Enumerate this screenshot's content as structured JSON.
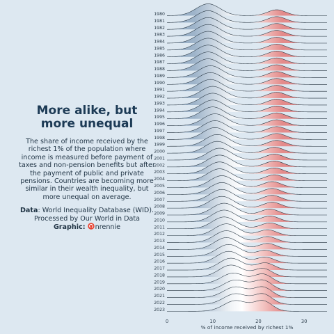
{
  "text": {
    "title": "More alike, but more unequal",
    "description": "The share of income received by the richest 1% of the population where income is measured before payment of taxes and non-pension benefits but after the payment of public and private pensions. Countries are becoming more similar in their wealth inequality, but more unequal on average.",
    "data_label": "Data",
    "data_text": ": World Inequality Database (WID). Processed by Our World in Data",
    "graphic_label": "Graphic",
    "graphic_sep": ":",
    "graphic_handle": "nrennie",
    "github_icon": "github-icon"
  },
  "colors": {
    "background": "#dde8f1",
    "low_fill": "#8fa9c2",
    "mid_fill": "#f1f4f7",
    "high_fill": "#e38b8b",
    "ridge_line": "#22303c",
    "title": "#1c3a55"
  },
  "chart_data": {
    "type": "ridgeline",
    "xlabel": "% of income received by richest 1%",
    "xlim": [
      0,
      35
    ],
    "x_ticks": [
      0,
      10,
      20,
      30
    ],
    "fill_gradient": "blue (low) to white (~15) to red (high)",
    "series": [
      {
        "year": "1980",
        "peaks": [
          {
            "mean": 9,
            "sd": 2.6,
            "weight": 1.0
          },
          {
            "mean": 24,
            "sd": 2.0,
            "weight": 0.5
          }
        ]
      },
      {
        "year": "1981",
        "peaks": [
          {
            "mean": 9,
            "sd": 2.6,
            "weight": 1.0
          },
          {
            "mean": 24,
            "sd": 2.0,
            "weight": 0.5
          }
        ]
      },
      {
        "year": "1982",
        "peaks": [
          {
            "mean": 9,
            "sd": 2.6,
            "weight": 1.0
          },
          {
            "mean": 24,
            "sd": 2.0,
            "weight": 0.5
          }
        ]
      },
      {
        "year": "1983",
        "peaks": [
          {
            "mean": 9,
            "sd": 2.6,
            "weight": 1.0
          },
          {
            "mean": 24,
            "sd": 2.0,
            "weight": 0.5
          }
        ]
      },
      {
        "year": "1984",
        "peaks": [
          {
            "mean": 9,
            "sd": 2.6,
            "weight": 1.0
          },
          {
            "mean": 24,
            "sd": 2.0,
            "weight": 0.5
          }
        ]
      },
      {
        "year": "1985",
        "peaks": [
          {
            "mean": 9,
            "sd": 2.6,
            "weight": 1.0
          },
          {
            "mean": 24,
            "sd": 2.0,
            "weight": 0.5
          }
        ]
      },
      {
        "year": "1986",
        "peaks": [
          {
            "mean": 9,
            "sd": 2.6,
            "weight": 1.0
          },
          {
            "mean": 24,
            "sd": 2.0,
            "weight": 0.5
          }
        ]
      },
      {
        "year": "1987",
        "peaks": [
          {
            "mean": 9,
            "sd": 2.6,
            "weight": 1.0
          },
          {
            "mean": 24,
            "sd": 2.0,
            "weight": 0.5
          }
        ]
      },
      {
        "year": "1988",
        "peaks": [
          {
            "mean": 9,
            "sd": 2.6,
            "weight": 1.0
          },
          {
            "mean": 24,
            "sd": 2.0,
            "weight": 0.5
          }
        ]
      },
      {
        "year": "1989",
        "peaks": [
          {
            "mean": 9.5,
            "sd": 2.6,
            "weight": 1.0
          },
          {
            "mean": 24,
            "sd": 2.0,
            "weight": 0.5
          }
        ]
      },
      {
        "year": "1990",
        "peaks": [
          {
            "mean": 9.5,
            "sd": 2.6,
            "weight": 1.0
          },
          {
            "mean": 24,
            "sd": 2.0,
            "weight": 0.5
          }
        ]
      },
      {
        "year": "1991",
        "peaks": [
          {
            "mean": 9.5,
            "sd": 2.6,
            "weight": 1.0
          },
          {
            "mean": 24,
            "sd": 2.0,
            "weight": 0.5
          }
        ]
      },
      {
        "year": "1992",
        "peaks": [
          {
            "mean": 10,
            "sd": 2.6,
            "weight": 1.0
          },
          {
            "mean": 24,
            "sd": 2.0,
            "weight": 0.5
          }
        ]
      },
      {
        "year": "1993",
        "peaks": [
          {
            "mean": 10,
            "sd": 2.6,
            "weight": 1.0
          },
          {
            "mean": 24,
            "sd": 2.0,
            "weight": 0.5
          }
        ]
      },
      {
        "year": "1994",
        "peaks": [
          {
            "mean": 10,
            "sd": 2.6,
            "weight": 1.0
          },
          {
            "mean": 24,
            "sd": 2.0,
            "weight": 0.5
          }
        ]
      },
      {
        "year": "1995",
        "peaks": [
          {
            "mean": 10,
            "sd": 2.6,
            "weight": 1.0
          },
          {
            "mean": 24,
            "sd": 2.0,
            "weight": 0.5
          }
        ]
      },
      {
        "year": "1996",
        "peaks": [
          {
            "mean": 10.5,
            "sd": 2.6,
            "weight": 1.0
          },
          {
            "mean": 24,
            "sd": 2.0,
            "weight": 0.5
          }
        ]
      },
      {
        "year": "1997",
        "peaks": [
          {
            "mean": 10.5,
            "sd": 2.6,
            "weight": 1.0
          },
          {
            "mean": 24,
            "sd": 2.0,
            "weight": 0.5
          }
        ]
      },
      {
        "year": "1998",
        "peaks": [
          {
            "mean": 10.5,
            "sd": 2.6,
            "weight": 1.0
          },
          {
            "mean": 24,
            "sd": 2.0,
            "weight": 0.5
          }
        ]
      },
      {
        "year": "1999",
        "peaks": [
          {
            "mean": 11,
            "sd": 2.6,
            "weight": 1.0
          },
          {
            "mean": 24,
            "sd": 2.0,
            "weight": 0.5
          }
        ]
      },
      {
        "year": "2000",
        "peaks": [
          {
            "mean": 11,
            "sd": 2.6,
            "weight": 1.0
          },
          {
            "mean": 23.5,
            "sd": 2.0,
            "weight": 0.5
          }
        ]
      },
      {
        "year": "2001",
        "peaks": [
          {
            "mean": 11.5,
            "sd": 2.6,
            "weight": 1.0
          },
          {
            "mean": 23.5,
            "sd": 2.0,
            "weight": 0.5
          }
        ]
      },
      {
        "year": "2002",
        "peaks": [
          {
            "mean": 11.5,
            "sd": 2.6,
            "weight": 1.0
          },
          {
            "mean": 23.5,
            "sd": 2.0,
            "weight": 0.5
          }
        ]
      },
      {
        "year": "2003",
        "peaks": [
          {
            "mean": 11.5,
            "sd": 2.6,
            "weight": 1.0
          },
          {
            "mean": 23.5,
            "sd": 2.0,
            "weight": 0.5
          }
        ]
      },
      {
        "year": "2004",
        "peaks": [
          {
            "mean": 11.5,
            "sd": 2.6,
            "weight": 1.0
          },
          {
            "mean": 23.5,
            "sd": 2.0,
            "weight": 0.5
          }
        ]
      },
      {
        "year": "2005",
        "peaks": [
          {
            "mean": 12,
            "sd": 2.6,
            "weight": 1.0
          },
          {
            "mean": 23,
            "sd": 2.0,
            "weight": 0.5
          }
        ]
      },
      {
        "year": "2006",
        "peaks": [
          {
            "mean": 12,
            "sd": 2.6,
            "weight": 1.0
          },
          {
            "mean": 23,
            "sd": 2.0,
            "weight": 0.5
          }
        ]
      },
      {
        "year": "2007",
        "peaks": [
          {
            "mean": 12,
            "sd": 2.6,
            "weight": 1.0
          },
          {
            "mean": 23,
            "sd": 2.0,
            "weight": 0.5
          }
        ]
      },
      {
        "year": "2008",
        "peaks": [
          {
            "mean": 12,
            "sd": 2.6,
            "weight": 1.0
          },
          {
            "mean": 23,
            "sd": 2.0,
            "weight": 0.5
          }
        ]
      },
      {
        "year": "2009",
        "peaks": [
          {
            "mean": 12.5,
            "sd": 2.6,
            "weight": 1.0
          },
          {
            "mean": 22.5,
            "sd": 2.0,
            "weight": 0.5
          }
        ]
      },
      {
        "year": "2010",
        "peaks": [
          {
            "mean": 12.5,
            "sd": 2.6,
            "weight": 1.0
          },
          {
            "mean": 22.5,
            "sd": 2.0,
            "weight": 0.5
          }
        ]
      },
      {
        "year": "2011",
        "peaks": [
          {
            "mean": 12.5,
            "sd": 2.6,
            "weight": 1.0
          },
          {
            "mean": 22.5,
            "sd": 2.0,
            "weight": 0.5
          }
        ]
      },
      {
        "year": "2012",
        "peaks": [
          {
            "mean": 13,
            "sd": 2.6,
            "weight": 1.0
          },
          {
            "mean": 22,
            "sd": 2.0,
            "weight": 0.5
          }
        ]
      },
      {
        "year": "2013",
        "peaks": [
          {
            "mean": 13,
            "sd": 2.6,
            "weight": 1.0
          },
          {
            "mean": 22,
            "sd": 2.0,
            "weight": 0.5
          }
        ]
      },
      {
        "year": "2014",
        "peaks": [
          {
            "mean": 13,
            "sd": 2.6,
            "weight": 1.0
          },
          {
            "mean": 22,
            "sd": 2.0,
            "weight": 0.5
          }
        ]
      },
      {
        "year": "2015",
        "peaks": [
          {
            "mean": 13.5,
            "sd": 2.6,
            "weight": 1.0
          },
          {
            "mean": 21.5,
            "sd": 2.0,
            "weight": 0.5
          }
        ]
      },
      {
        "year": "2016",
        "peaks": [
          {
            "mean": 13.5,
            "sd": 2.6,
            "weight": 1.0
          },
          {
            "mean": 21.5,
            "sd": 2.0,
            "weight": 0.5
          }
        ]
      },
      {
        "year": "2017",
        "peaks": [
          {
            "mean": 14,
            "sd": 2.6,
            "weight": 1.0
          },
          {
            "mean": 21.5,
            "sd": 2.0,
            "weight": 0.6
          }
        ]
      },
      {
        "year": "2018",
        "peaks": [
          {
            "mean": 14,
            "sd": 2.6,
            "weight": 1.0
          },
          {
            "mean": 21,
            "sd": 2.0,
            "weight": 0.7
          }
        ]
      },
      {
        "year": "2019",
        "peaks": [
          {
            "mean": 14.5,
            "sd": 2.6,
            "weight": 0.9
          },
          {
            "mean": 21,
            "sd": 2.0,
            "weight": 0.8
          }
        ]
      },
      {
        "year": "2020",
        "peaks": [
          {
            "mean": 15,
            "sd": 2.6,
            "weight": 0.9
          },
          {
            "mean": 21,
            "sd": 2.0,
            "weight": 0.85
          }
        ]
      },
      {
        "year": "2021",
        "peaks": [
          {
            "mean": 15,
            "sd": 2.6,
            "weight": 0.9
          },
          {
            "mean": 21,
            "sd": 2.0,
            "weight": 0.85
          }
        ]
      },
      {
        "year": "2022",
        "peaks": [
          {
            "mean": 15,
            "sd": 2.6,
            "weight": 0.9
          },
          {
            "mean": 21,
            "sd": 2.0,
            "weight": 0.85
          }
        ]
      },
      {
        "year": "2023",
        "peaks": [
          {
            "mean": 15,
            "sd": 2.6,
            "weight": 0.9
          },
          {
            "mean": 21,
            "sd": 2.0,
            "weight": 0.85
          }
        ]
      }
    ]
  }
}
